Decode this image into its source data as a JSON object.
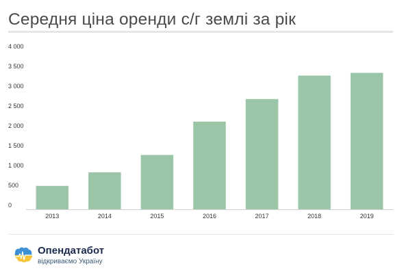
{
  "header": {
    "title": "Середня ціна оренди с/г землі за рік"
  },
  "chart_data": {
    "type": "bar",
    "title": "Середня ціна оренди с/г землі за рік",
    "categories": [
      "2013",
      "2014",
      "2015",
      "2016",
      "2017",
      "2018",
      "2019"
    ],
    "values": [
      590,
      930,
      1370,
      2210,
      2780,
      3370,
      3440
    ],
    "ylim": [
      0,
      4000
    ],
    "yticks": [
      0,
      500,
      1000,
      1500,
      2000,
      2500,
      3000,
      3500,
      4000
    ],
    "ytick_labels": [
      "0",
      "500",
      "1 000",
      "1 500",
      "2 000",
      "2 500",
      "3 000",
      "3 500",
      "4 000"
    ],
    "bar_color": "#9bc5a7",
    "grid": false,
    "legend": "none",
    "xlabel": "",
    "ylabel": ""
  },
  "footer": {
    "brand": "Опендатабот",
    "tagline": "відкриваємо Україну",
    "logo_icon": "ukraine-map-icon",
    "logo_colors": {
      "top": "#3d8fd6",
      "bottom": "#f5c63a"
    }
  }
}
